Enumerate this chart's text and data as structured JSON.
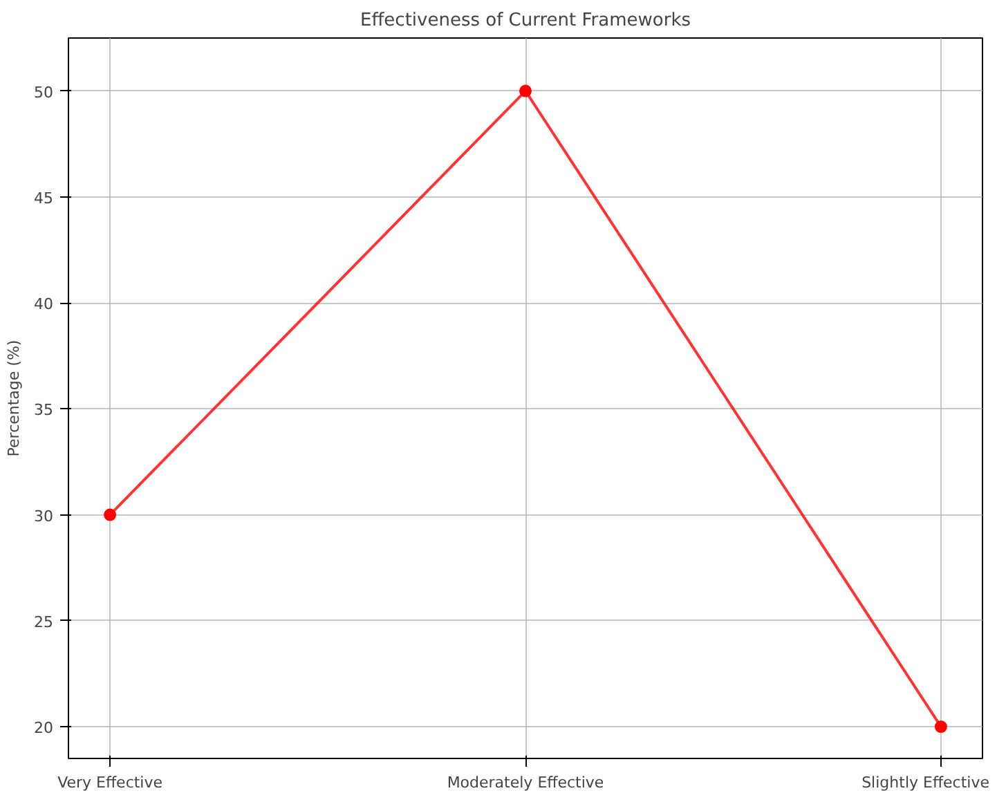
{
  "chart_data": {
    "type": "line",
    "title": "Effectiveness of Current Frameworks",
    "ylabel": "Percentage (%)",
    "categories": [
      "Very Effective",
      "Moderately Effective",
      "Slightly Effective"
    ],
    "series": [
      {
        "color": "#ff0000",
        "values": [
          30,
          50,
          20
        ]
      }
    ],
    "ylim": [
      18.5,
      52.5
    ],
    "yticks": [
      20,
      25,
      30,
      35,
      40,
      45,
      50
    ],
    "grid": true,
    "marker": "circle",
    "line_style": "solid"
  }
}
